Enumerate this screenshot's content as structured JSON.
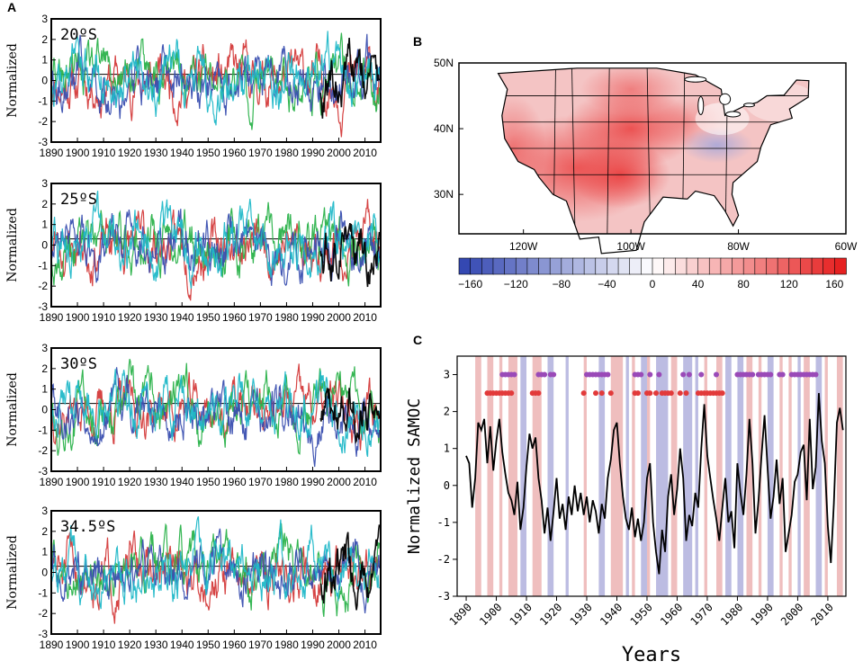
{
  "panels": {
    "a_label": "A",
    "b_label": "B",
    "c_label": "C"
  },
  "chart_data": [
    {
      "id": "A",
      "type": "line",
      "ylabel": "Normalized",
      "ylim": [
        -3,
        3
      ],
      "yticks": [
        -3,
        -2,
        -1,
        0,
        1,
        2,
        3
      ],
      "xlim": [
        1890,
        2016
      ],
      "xticks": [
        1890,
        1900,
        1910,
        1920,
        1930,
        1940,
        1950,
        1960,
        1970,
        1980,
        1990,
        2000,
        2010
      ],
      "reference_line": 0.3,
      "series_colors": [
        "#d43a3a",
        "#2ab24a",
        "#3a4fb0",
        "#20b8c8",
        "#000000"
      ],
      "subplots": [
        {
          "label": "20ºS",
          "seed": 11
        },
        {
          "label": "25ºS",
          "seed": 23
        },
        {
          "label": "30ºS",
          "seed": 37
        },
        {
          "label": "34.5ºS",
          "seed": 51
        }
      ]
    },
    {
      "id": "B",
      "type": "heatmap",
      "lat_ticks": [
        "50N",
        "40N",
        "30N"
      ],
      "lon_ticks": [
        "120W",
        "100W",
        "80W",
        "60W"
      ],
      "colorbar_ticks": [
        "-160",
        "-120",
        "-80",
        "-40",
        "0",
        "40",
        "80",
        "120",
        "160"
      ],
      "colorbar_range": [
        -170,
        170
      ],
      "colorbar_levels": 34
    },
    {
      "id": "C",
      "type": "line",
      "title": "",
      "xlabel": "Years",
      "ylabel": "Normalized SAMOC",
      "ylim": [
        -3,
        3.5
      ],
      "yticks": [
        -3,
        -2,
        -1,
        0,
        1,
        2,
        3
      ],
      "xlim": [
        1887,
        2016
      ],
      "xticks": [
        1890,
        1900,
        1910,
        1920,
        1930,
        1940,
        1950,
        1960,
        1970,
        1980,
        1990,
        2000,
        2010
      ],
      "purple_dots_y": 3,
      "red_dots_y": 2.5,
      "purple_dot_years": [
        1902,
        1903,
        1904,
        1905,
        1906,
        1914,
        1915,
        1916,
        1918,
        1919,
        1930,
        1931,
        1932,
        1933,
        1934,
        1935,
        1936,
        1937,
        1946,
        1947,
        1948,
        1951,
        1954,
        1962,
        1964,
        1968,
        1973,
        1980,
        1981,
        1982,
        1983,
        1984,
        1985,
        1987,
        1988,
        1989,
        1990,
        1991,
        1994,
        1995,
        1998,
        1999,
        2000,
        2001,
        2002,
        2003,
        2004,
        2005,
        2006
      ],
      "red_dot_years": [
        1897,
        1898,
        1899,
        1900,
        1901,
        1902,
        1903,
        1904,
        1905,
        1912,
        1913,
        1914,
        1929,
        1933,
        1935,
        1938,
        1946,
        1947,
        1950,
        1951,
        1953,
        1955,
        1956,
        1957,
        1958,
        1961,
        1963,
        1967,
        1968,
        1969,
        1970,
        1971,
        1972,
        1973,
        1974,
        1975
      ],
      "red_bands": [
        [
          1893,
          1895
        ],
        [
          1897,
          1899
        ],
        [
          1901,
          1902
        ],
        [
          1904,
          1907
        ],
        [
          1912,
          1915
        ],
        [
          1929,
          1930
        ],
        [
          1938,
          1942
        ],
        [
          1945,
          1946
        ],
        [
          1950,
          1951
        ],
        [
          1958,
          1960
        ],
        [
          1969,
          1970
        ],
        [
          1973,
          1975
        ],
        [
          1983,
          1985
        ],
        [
          1987,
          1988
        ],
        [
          1994,
          1995
        ],
        [
          1997,
          1998
        ],
        [
          2002,
          2004
        ],
        [
          2009,
          2010
        ],
        [
          2013,
          2015
        ]
      ],
      "blue_bands": [
        [
          1908,
          1910
        ],
        [
          1917,
          1919
        ],
        [
          1923,
          1924
        ],
        [
          1934,
          1936
        ],
        [
          1943,
          1944
        ],
        [
          1948,
          1950
        ],
        [
          1953,
          1957
        ],
        [
          1962,
          1965
        ],
        [
          1966,
          1967
        ],
        [
          1976,
          1978
        ],
        [
          1980,
          1982
        ],
        [
          1990,
          1992
        ],
        [
          2000,
          2001
        ],
        [
          2006,
          2008
        ]
      ],
      "samoc_series": {
        "x": [
          1890,
          1891,
          1892,
          1893,
          1894,
          1895,
          1896,
          1897,
          1898,
          1899,
          1900,
          1901,
          1902,
          1903,
          1904,
          1905,
          1906,
          1907,
          1908,
          1909,
          1910,
          1911,
          1912,
          1913,
          1914,
          1915,
          1916,
          1917,
          1918,
          1919,
          1920,
          1921,
          1922,
          1923,
          1924,
          1925,
          1926,
          1927,
          1928,
          1929,
          1930,
          1931,
          1932,
          1933,
          1934,
          1935,
          1936,
          1937,
          1938,
          1939,
          1940,
          1941,
          1942,
          1943,
          1944,
          1945,
          1946,
          1947,
          1948,
          1949,
          1950,
          1951,
          1952,
          1953,
          1954,
          1955,
          1956,
          1957,
          1958,
          1959,
          1960,
          1961,
          1962,
          1963,
          1964,
          1965,
          1966,
          1967,
          1968,
          1969,
          1970,
          1971,
          1972,
          1973,
          1974,
          1975,
          1976,
          1977,
          1978,
          1979,
          1980,
          1981,
          1982,
          1983,
          1984,
          1985,
          1986,
          1987,
          1988,
          1989,
          1990,
          1991,
          1992,
          1993,
          1994,
          1995,
          1996,
          1997,
          1998,
          1999,
          2000,
          2001,
          2002,
          2003,
          2004,
          2005,
          2006,
          2007,
          2008,
          2009,
          2010,
          2011,
          2012,
          2013,
          2014,
          2015
        ],
        "y": [
          0.8,
          0.6,
          -0.6,
          0.2,
          1.7,
          1.5,
          1.8,
          0.6,
          1.6,
          0.4,
          1.2,
          1.8,
          0.9,
          0.3,
          -0.2,
          -0.4,
          -0.8,
          0.1,
          -1.2,
          -0.6,
          0.5,
          1.4,
          1.0,
          1.3,
          0.2,
          -0.4,
          -1.3,
          -0.6,
          -1.5,
          -0.7,
          0.2,
          -0.9,
          -0.5,
          -1.2,
          -0.3,
          -0.8,
          0.0,
          -0.7,
          -0.2,
          -0.8,
          -0.3,
          -1.0,
          -0.4,
          -0.7,
          -1.3,
          -0.5,
          -0.9,
          0.2,
          0.7,
          1.5,
          1.7,
          0.6,
          -0.3,
          -0.9,
          -1.2,
          -0.6,
          -1.4,
          -0.9,
          -1.5,
          -1.0,
          0.2,
          0.6,
          -1.0,
          -1.8,
          -2.4,
          -1.2,
          -1.8,
          -0.3,
          0.3,
          -0.8,
          -0.1,
          1.0,
          0.2,
          -1.5,
          -0.8,
          -1.1,
          -0.2,
          -0.6,
          1.0,
          2.2,
          0.8,
          0.2,
          -0.4,
          -0.9,
          -1.5,
          -0.6,
          0.2,
          -1.0,
          -0.7,
          -1.7,
          0.6,
          -0.2,
          -0.8,
          0.3,
          1.8,
          0.6,
          -1.3,
          -0.4,
          0.8,
          1.9,
          0.5,
          -0.9,
          -0.3,
          0.7,
          -0.5,
          0.2,
          -1.8,
          -1.3,
          -0.8,
          0.1,
          0.3,
          0.9,
          1.1,
          -0.4,
          1.8,
          -0.1,
          0.5,
          2.5,
          1.2,
          0.6,
          -1.1,
          -2.1,
          -0.5,
          1.7,
          2.1,
          1.5
        ]
      }
    }
  ]
}
